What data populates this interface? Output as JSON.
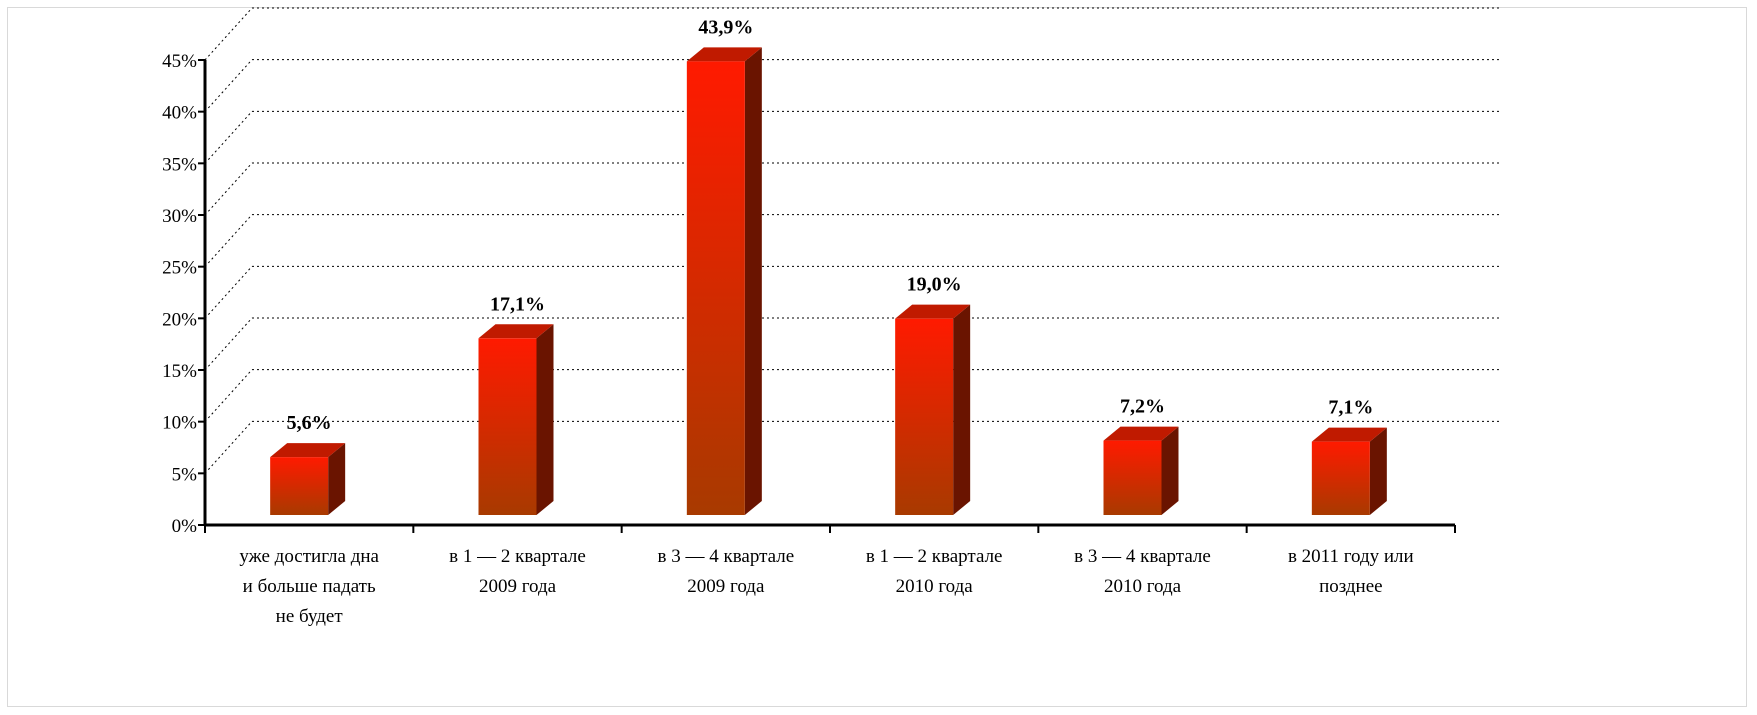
{
  "chart_data": {
    "type": "bar",
    "title": "",
    "xlabel": "",
    "ylabel": "",
    "ylim": [
      0,
      45
    ],
    "y_ticks": [
      {
        "value": 0,
        "label": "0%"
      },
      {
        "value": 5,
        "label": "5%"
      },
      {
        "value": 10,
        "label": "10%"
      },
      {
        "value": 15,
        "label": "15%"
      },
      {
        "value": 20,
        "label": "20%"
      },
      {
        "value": 25,
        "label": "25%"
      },
      {
        "value": 30,
        "label": "30%"
      },
      {
        "value": 35,
        "label": "35%"
      },
      {
        "value": 40,
        "label": "40%"
      },
      {
        "value": 45,
        "label": "45%"
      }
    ],
    "grid": "horizontal dotted",
    "legend": "none",
    "style": "3d-column",
    "categories": [
      [
        "уже достигла дна",
        "и больше падать",
        "не будет"
      ],
      [
        "в 1 — 2 квартале",
        "2009 года"
      ],
      [
        "в 3 — 4 квартале",
        "2009 года"
      ],
      [
        "в 1 — 2 квартале",
        "2010 года"
      ],
      [
        "в 3 — 4 квартале",
        "2010 года"
      ],
      [
        "в 2011 году или",
        "позднее"
      ]
    ],
    "values": [
      5.6,
      17.1,
      43.9,
      19.0,
      7.2,
      7.1
    ],
    "data_labels": [
      "5,6%",
      "17,1%",
      "43,9%",
      "19,0%",
      "7,2%",
      "7,1%"
    ],
    "colors": {
      "bar_front_top": "#ff1a00",
      "bar_front_bottom": "#a83a00",
      "bar_side": "#6a1400",
      "bar_top": "#c01a00",
      "grid": "#000000",
      "axis": "#000000"
    }
  }
}
